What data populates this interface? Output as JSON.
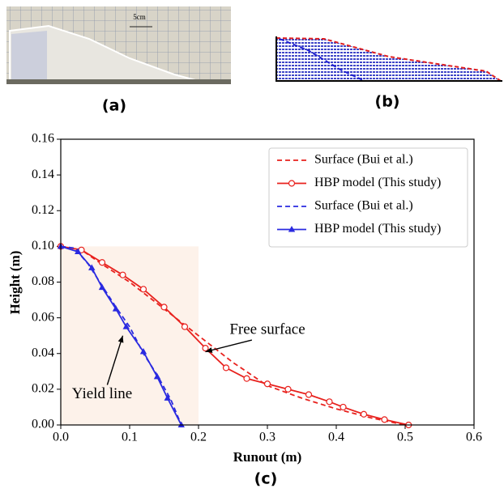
{
  "panels": {
    "a": "(a)",
    "b": "(b)"
  },
  "photo_scale": "5cm",
  "chart_data": {
    "type": "line",
    "caption": "(c)",
    "xlabel": "Runout (m)",
    "ylabel": "Height (m)",
    "xlim": [
      0,
      0.6
    ],
    "ylim": [
      0,
      0.16
    ],
    "xticks": [
      {
        "value": 0,
        "label": "0.0"
      },
      0.1,
      0.2,
      0.3,
      0.4,
      0.5,
      0.6
    ],
    "yticks": [
      {
        "value": 0,
        "label": "0.00"
      },
      {
        "value": 0.02,
        "label": "0.02"
      },
      {
        "value": 0.04,
        "label": "0.04"
      },
      {
        "value": 0.06,
        "label": "0.06"
      },
      {
        "value": 0.08,
        "label": "0.08"
      },
      {
        "value": 0.1,
        "label": "0.10"
      },
      {
        "value": 0.12,
        "label": "0.12"
      },
      {
        "value": 0.14,
        "label": "0.14"
      },
      {
        "value": 0.16,
        "label": "0.16"
      }
    ],
    "shaded_region": {
      "x": [
        0,
        0.2
      ],
      "y": [
        0,
        0.1
      ],
      "color": "#fdf2ea"
    },
    "legend": "upper right",
    "series": [
      {
        "name": "Surface (Bui et al.)",
        "color": "#e8211d",
        "dash": true,
        "marker": "none",
        "x": [
          0,
          0.03,
          0.06,
          0.1,
          0.15,
          0.2,
          0.25,
          0.3,
          0.35,
          0.4,
          0.45,
          0.5
        ],
        "values": [
          0.1,
          0.098,
          0.09,
          0.08,
          0.065,
          0.05,
          0.035,
          0.022,
          0.015,
          0.009,
          0.004,
          0
        ]
      },
      {
        "name": "HBP model (This study)",
        "color": "#e8211d",
        "dash": false,
        "marker": "circle",
        "x": [
          0,
          0.03,
          0.06,
          0.09,
          0.12,
          0.15,
          0.18,
          0.21,
          0.24,
          0.27,
          0.3,
          0.33,
          0.36,
          0.39,
          0.41,
          0.44,
          0.47,
          0.505
        ],
        "values": [
          0.1,
          0.098,
          0.091,
          0.084,
          0.076,
          0.066,
          0.055,
          0.043,
          0.032,
          0.026,
          0.023,
          0.02,
          0.017,
          0.013,
          0.01,
          0.006,
          0.003,
          0
        ]
      },
      {
        "name": "Surface (Bui et al.)",
        "color": "#2a2ae0",
        "dash": true,
        "marker": "none",
        "x": [
          0,
          0.02,
          0.04,
          0.06,
          0.08,
          0.1,
          0.12,
          0.14,
          0.16,
          0.175
        ],
        "values": [
          0.1,
          0.099,
          0.09,
          0.078,
          0.066,
          0.055,
          0.04,
          0.028,
          0.014,
          0
        ]
      },
      {
        "name": "HBP model (This study)",
        "color": "#2a2ae0",
        "dash": false,
        "marker": "triangle",
        "x": [
          0,
          0.025,
          0.045,
          0.06,
          0.08,
          0.095,
          0.12,
          0.14,
          0.155,
          0.175
        ],
        "values": [
          0.1,
          0.097,
          0.088,
          0.077,
          0.065,
          0.055,
          0.041,
          0.027,
          0.015,
          0
        ]
      }
    ],
    "annotations": [
      {
        "text": "Free surface",
        "xy": [
          0.21,
          0.041
        ],
        "xytext": [
          0.3,
          0.053
        ]
      },
      {
        "text": "Yield line",
        "xy": [
          0.09,
          0.05
        ],
        "xytext": [
          0.06,
          0.017
        ]
      }
    ]
  }
}
